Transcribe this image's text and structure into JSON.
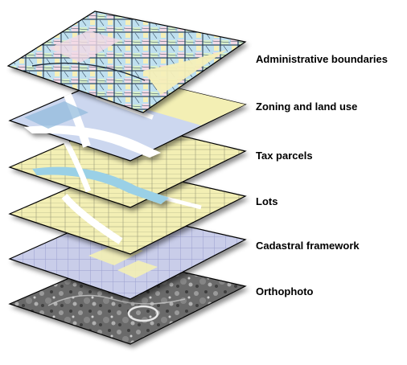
{
  "layers": [
    {
      "label": "Administrative boundaries"
    },
    {
      "label": "Zoning and land use"
    },
    {
      "label": "Tax parcels"
    },
    {
      "label": "Lots"
    },
    {
      "label": "Cadastral framework"
    },
    {
      "label": "Orthophoto"
    }
  ]
}
